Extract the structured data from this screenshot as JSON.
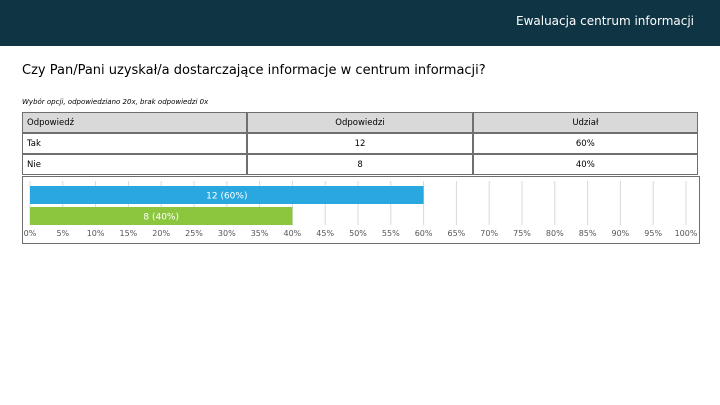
{
  "header": {
    "title": "Ewaluacja centrum informacji"
  },
  "question": "Czy Pan/Pani uzyskał/a dostarczające informacje w centrum informacji?",
  "meta": "Wybór opcji, odpowiedziano 20x, brak odpowiedzi 0x",
  "table": {
    "headers": [
      "Odpowiedź",
      "Odpowiedzi",
      "Udział"
    ],
    "rows": [
      [
        "Tak",
        "12",
        "60%"
      ],
      [
        "Nie",
        "8",
        "40%"
      ]
    ]
  },
  "chart_data": {
    "type": "bar",
    "orientation": "horizontal",
    "categories": [
      "Tak",
      "Nie"
    ],
    "values": [
      60,
      40
    ],
    "data_labels": [
      "12 (60%)",
      "8 (40%)"
    ],
    "colors": [
      "#29a8e0",
      "#8cc63f"
    ],
    "xlim": [
      0,
      100
    ],
    "x_ticks": [
      "0%",
      "5%",
      "10%",
      "15%",
      "20%",
      "25%",
      "30%",
      "35%",
      "40%",
      "45%",
      "50%",
      "55%",
      "60%",
      "65%",
      "70%",
      "75%",
      "80%",
      "85%",
      "90%",
      "95%",
      "100%"
    ],
    "grid": true
  }
}
